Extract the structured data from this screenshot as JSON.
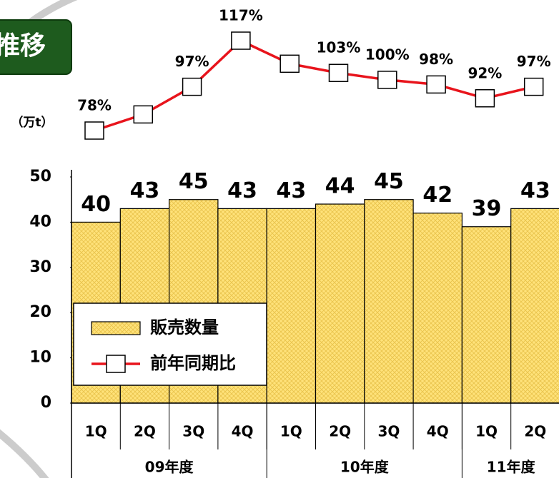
{
  "chart_data": {
    "type": "bar",
    "title": "推移",
    "y_label": "（万t）",
    "categories": [
      "1Q",
      "2Q",
      "3Q",
      "4Q",
      "1Q",
      "2Q",
      "3Q",
      "4Q",
      "1Q",
      "2Q"
    ],
    "groups": [
      {
        "name": "09年度",
        "count": 4
      },
      {
        "name": "10年度",
        "count": 4
      },
      {
        "name": "11年度",
        "count": 2
      }
    ],
    "series": [
      {
        "name": "販売数量",
        "type": "bar",
        "color": "#ffe27a",
        "values": [
          40,
          43,
          45,
          43,
          43,
          44,
          45,
          42,
          39,
          43
        ]
      },
      {
        "name": "前年同期比",
        "type": "line",
        "axis": "y2",
        "color": "#e8141c",
        "values": [
          78,
          85,
          97,
          117,
          107,
          103,
          100,
          98,
          92,
          97
        ],
        "value_labels": [
          "78%",
          null,
          "97%",
          "117%",
          null,
          "103%",
          "100%",
          "98%",
          "92%",
          "97%"
        ]
      }
    ],
    "ylim": [
      0,
      50
    ],
    "yticks": [
      0,
      10,
      20,
      30,
      40,
      50
    ],
    "legend": "lower left"
  }
}
